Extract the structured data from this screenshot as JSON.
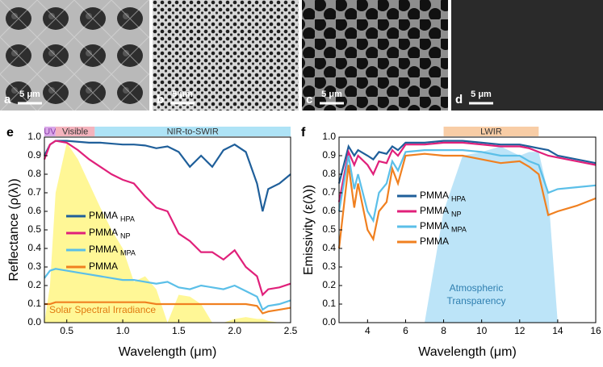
{
  "panels": [
    {
      "label": "a",
      "scale": "5 μm"
    },
    {
      "label": "b",
      "scale": "5 μm"
    },
    {
      "label": "c",
      "scale": "5 μm"
    },
    {
      "label": "d",
      "scale": "5 μm"
    }
  ],
  "chart_data": [
    {
      "type": "line",
      "panel_label": "e",
      "x_label": "Wavelength (μm)",
      "y_label": "Reflectance (ρ(λ))",
      "xlim": [
        0.3,
        2.5
      ],
      "ylim": [
        0,
        1
      ],
      "xticks": [
        0.5,
        {
          "value": 1,
          "label": "1.0"
        },
        1.5,
        {
          "value": 2,
          "label": "2.0"
        },
        2.5
      ],
      "yticks": [
        {
          "value": 0,
          "label": "0.0"
        },
        0.1,
        0.2,
        0.3,
        0.4,
        0.5,
        0.6,
        0.7,
        0.8,
        0.9,
        {
          "value": 1,
          "label": "1.0"
        }
      ],
      "bands": [
        {
          "label": "UV",
          "start": 0.3,
          "end": 0.4,
          "color": "#d9a6e8",
          "text_color": "#8a3fa8"
        },
        {
          "label": "Visible",
          "start": 0.4,
          "end": 0.75,
          "color": "#f4b3bd",
          "text_color": "#333333"
        },
        {
          "label": "NIR-to-SWIR",
          "start": 0.75,
          "end": 2.5,
          "color": "#aee3f6",
          "text_color": "#333333"
        }
      ],
      "x": [
        0.3,
        0.35,
        0.4,
        0.5,
        0.6,
        0.7,
        0.8,
        0.9,
        1.0,
        1.1,
        1.2,
        1.3,
        1.4,
        1.5,
        1.6,
        1.7,
        1.8,
        1.9,
        2.0,
        2.1,
        2.2,
        2.25,
        2.3,
        2.4,
        2.5
      ],
      "area": {
        "name": "Solar Spectral Irradiance",
        "color": "#fff36a",
        "text_color": "#e07a10",
        "values": [
          0,
          0.2,
          0.7,
          0.97,
          0.88,
          0.75,
          0.62,
          0.5,
          0.4,
          0.22,
          0.25,
          0.18,
          0,
          0.15,
          0.14,
          0.1,
          0,
          0,
          0.02,
          0.03,
          0.02,
          0.02,
          0.01,
          0,
          0
        ]
      },
      "series": [
        {
          "name": "PMMA",
          "subscript": "HPA",
          "color": "#1f5f9a",
          "values": [
            0.9,
            0.96,
            0.98,
            0.98,
            0.975,
            0.97,
            0.97,
            0.965,
            0.96,
            0.96,
            0.955,
            0.94,
            0.95,
            0.92,
            0.84,
            0.9,
            0.84,
            0.93,
            0.96,
            0.92,
            0.75,
            0.6,
            0.72,
            0.75,
            0.8
          ]
        },
        {
          "name": "PMMA",
          "subscript": "NP",
          "color": "#e0207a",
          "values": [
            0.88,
            0.96,
            0.98,
            0.97,
            0.93,
            0.88,
            0.84,
            0.8,
            0.77,
            0.75,
            0.68,
            0.62,
            0.6,
            0.48,
            0.44,
            0.38,
            0.38,
            0.34,
            0.39,
            0.3,
            0.25,
            0.15,
            0.18,
            0.19,
            0.21
          ]
        },
        {
          "name": "PMMA",
          "subscript": "MPA",
          "color": "#5bbfe8",
          "values": [
            0.24,
            0.28,
            0.29,
            0.28,
            0.27,
            0.26,
            0.25,
            0.24,
            0.23,
            0.23,
            0.22,
            0.21,
            0.22,
            0.19,
            0.18,
            0.2,
            0.19,
            0.18,
            0.2,
            0.17,
            0.14,
            0.07,
            0.09,
            0.1,
            0.12
          ]
        },
        {
          "name": "PMMA",
          "color": "#f08020",
          "values": [
            0.1,
            0.1,
            0.11,
            0.11,
            0.11,
            0.11,
            0.11,
            0.11,
            0.11,
            0.11,
            0.11,
            0.1,
            0.1,
            0.1,
            0.1,
            0.1,
            0.1,
            0.1,
            0.1,
            0.1,
            0.09,
            0.05,
            0.06,
            0.07,
            0.08
          ]
        }
      ]
    },
    {
      "type": "line",
      "panel_label": "f",
      "x_label": "Wavelength (μm)",
      "y_label": "Emissivity (ε(λ))",
      "xlim": [
        2.5,
        16
      ],
      "ylim": [
        0,
        1
      ],
      "xticks": [
        4,
        6,
        8,
        10,
        12,
        14,
        16
      ],
      "yticks": [
        {
          "value": 0,
          "label": "0.0"
        },
        0.1,
        0.2,
        0.3,
        0.4,
        0.5,
        0.6,
        0.7,
        0.8,
        0.9,
        {
          "value": 1,
          "label": "1.0"
        }
      ],
      "bands": [
        {
          "label": "LWIR",
          "start": 8,
          "end": 13,
          "color": "#f8cda6",
          "text_color": "#333333"
        }
      ],
      "x": [
        2.5,
        3,
        3.3,
        3.5,
        4,
        4.3,
        4.6,
        5,
        5.3,
        5.6,
        6,
        7,
        8,
        9,
        10,
        11,
        12,
        12.5,
        13,
        13.5,
        14,
        15,
        16
      ],
      "area": {
        "name": [
          "Atmospheric",
          "Transparency"
        ],
        "color": "#9fd8f5",
        "text_color": "#2f7fb0",
        "values": [
          0,
          0,
          0,
          0,
          0,
          0,
          0,
          0,
          0,
          0,
          0,
          0,
          0.6,
          0.9,
          0.92,
          0.95,
          0.9,
          0.92,
          0.92,
          0.7,
          0,
          0,
          0
        ]
      },
      "series": [
        {
          "name": "PMMA",
          "subscript": "HPA",
          "color": "#1f5f9a",
          "values": [
            0.75,
            0.95,
            0.9,
            0.93,
            0.9,
            0.88,
            0.92,
            0.91,
            0.95,
            0.93,
            0.97,
            0.97,
            0.98,
            0.98,
            0.97,
            0.96,
            0.96,
            0.95,
            0.94,
            0.93,
            0.9,
            0.88,
            0.86
          ]
        },
        {
          "name": "PMMA",
          "subscript": "NP",
          "color": "#e0207a",
          "values": [
            0.65,
            0.92,
            0.85,
            0.9,
            0.85,
            0.8,
            0.87,
            0.86,
            0.93,
            0.9,
            0.96,
            0.96,
            0.97,
            0.97,
            0.96,
            0.95,
            0.95,
            0.94,
            0.92,
            0.9,
            0.89,
            0.87,
            0.85
          ]
        },
        {
          "name": "PMMA",
          "subscript": "MPA",
          "color": "#5bbfe8",
          "values": [
            0.6,
            0.9,
            0.72,
            0.8,
            0.6,
            0.55,
            0.7,
            0.75,
            0.87,
            0.82,
            0.92,
            0.93,
            0.93,
            0.93,
            0.92,
            0.9,
            0.9,
            0.87,
            0.85,
            0.7,
            0.72,
            0.73,
            0.74
          ]
        },
        {
          "name": "PMMA",
          "color": "#f08020",
          "values": [
            0.4,
            0.85,
            0.62,
            0.75,
            0.5,
            0.45,
            0.6,
            0.65,
            0.83,
            0.75,
            0.9,
            0.91,
            0.9,
            0.9,
            0.88,
            0.86,
            0.87,
            0.84,
            0.8,
            0.58,
            0.6,
            0.63,
            0.67
          ]
        }
      ]
    }
  ]
}
